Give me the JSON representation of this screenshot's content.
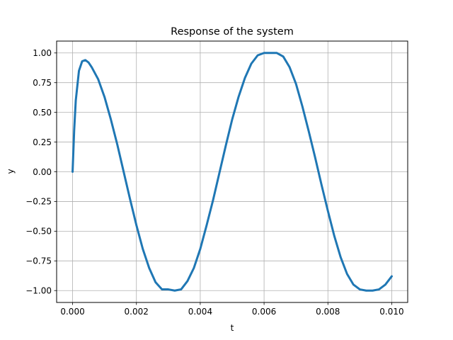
{
  "chart_data": {
    "type": "line",
    "title": "Response of the system",
    "xlabel": "t",
    "ylabel": "y",
    "xlim": [
      -0.0005,
      0.0105
    ],
    "ylim": [
      -1.1,
      1.1
    ],
    "xticks": [
      0.0,
      0.002,
      0.004,
      0.006,
      0.008,
      0.01
    ],
    "xtick_labels": [
      "0.000",
      "0.002",
      "0.004",
      "0.006",
      "0.008",
      "0.010"
    ],
    "yticks": [
      -1.0,
      -0.75,
      -0.5,
      -0.25,
      0.0,
      0.25,
      0.5,
      0.75,
      1.0
    ],
    "ytick_labels": [
      "−1.00",
      "−0.75",
      "−0.50",
      "−0.25",
      "0.00",
      "0.25",
      "0.50",
      "0.75",
      "1.00"
    ],
    "grid": true,
    "line_color": "#1f77b4",
    "series": [
      {
        "name": "",
        "x": [
          0.0,
          5e-05,
          0.0001,
          0.0002,
          0.0003,
          0.0004,
          0.0005,
          0.0006,
          0.0008,
          0.001,
          0.0012,
          0.0014,
          0.0016,
          0.0018,
          0.002,
          0.0022,
          0.0024,
          0.0026,
          0.0028,
          0.003,
          0.0032,
          0.0034,
          0.0036,
          0.0038,
          0.004,
          0.0042,
          0.0044,
          0.0046,
          0.0048,
          0.005,
          0.0052,
          0.0054,
          0.0056,
          0.0058,
          0.006,
          0.0062,
          0.0064,
          0.0066,
          0.0068,
          0.007,
          0.0072,
          0.0074,
          0.0076,
          0.0078,
          0.008,
          0.0082,
          0.0084,
          0.0086,
          0.0088,
          0.009,
          0.0092,
          0.0094,
          0.0096,
          0.0098,
          0.01
        ],
        "y": [
          0.0,
          0.35,
          0.6,
          0.85,
          0.93,
          0.94,
          0.92,
          0.88,
          0.78,
          0.63,
          0.44,
          0.23,
          0.0,
          -0.23,
          -0.45,
          -0.65,
          -0.81,
          -0.93,
          -0.99,
          -0.99,
          -1.0,
          -0.99,
          -0.92,
          -0.81,
          -0.65,
          -0.45,
          -0.24,
          -0.01,
          0.22,
          0.44,
          0.63,
          0.79,
          0.91,
          0.98,
          1.0,
          1.0,
          1.0,
          0.97,
          0.88,
          0.74,
          0.55,
          0.34,
          0.12,
          -0.11,
          -0.33,
          -0.54,
          -0.72,
          -0.86,
          -0.95,
          -0.99,
          -1.0,
          -1.0,
          -0.99,
          -0.95,
          -0.88
        ]
      }
    ]
  }
}
